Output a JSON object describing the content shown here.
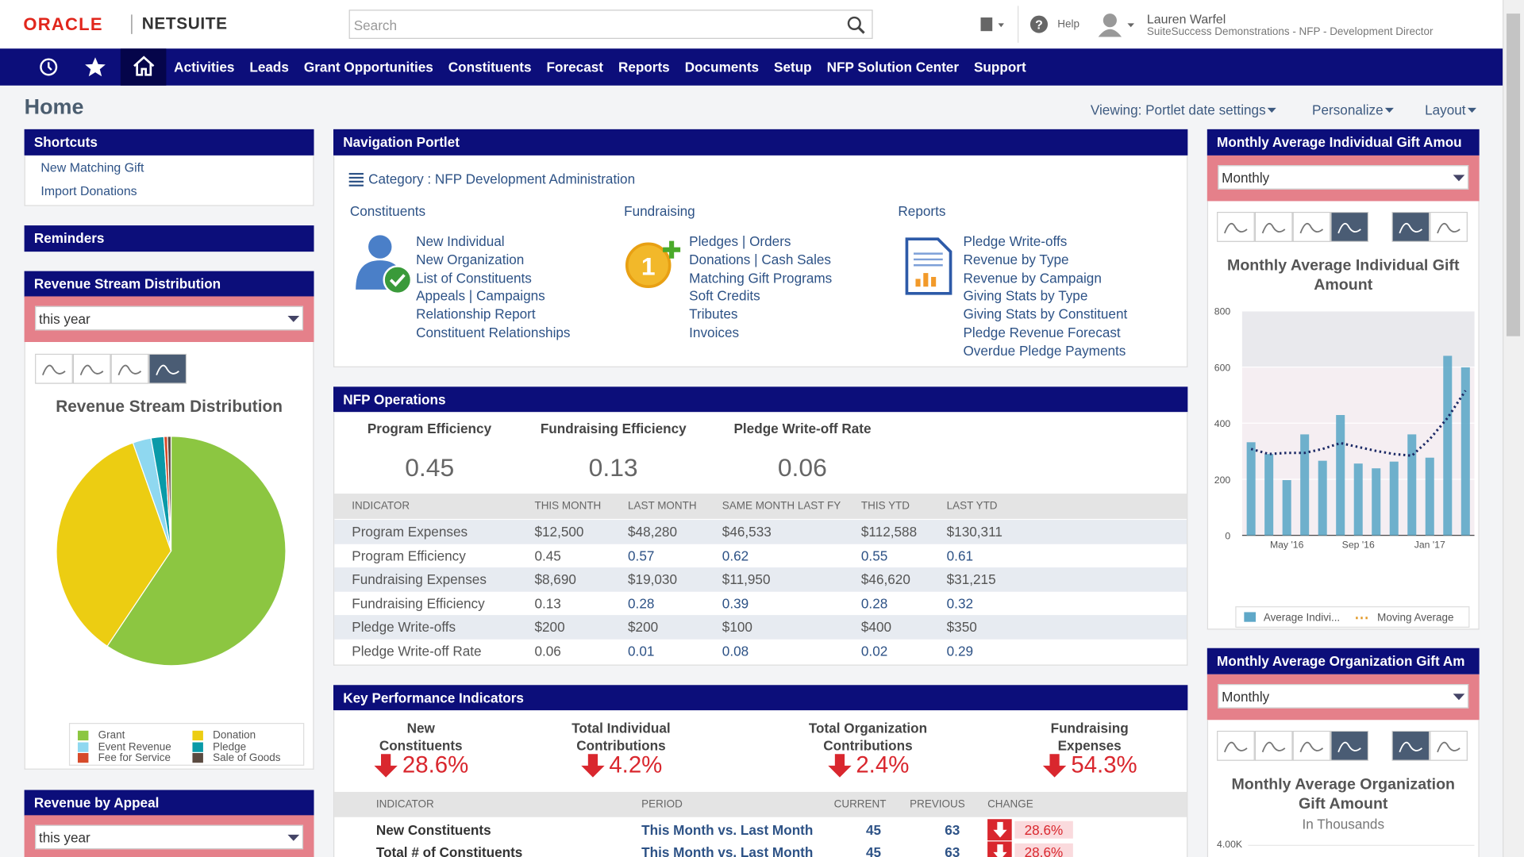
{
  "header": {
    "oracle": "ORACLE",
    "netsuite": "NETSUITE",
    "search": "Search",
    "help": "Help",
    "user_name": "Lauren Warfel",
    "user_role": "SuiteSuccess Demonstrations - NFP - Development Director"
  },
  "nav": [
    "Activities",
    "Leads",
    "Grant Opportunities",
    "Constituents",
    "Forecast",
    "Reports",
    "Documents",
    "Setup",
    "NFP Solution Center",
    "Support"
  ],
  "page_title": "Home",
  "toolbar": [
    "Viewing: Portlet date settings",
    "Personalize",
    "Layout"
  ],
  "shortcuts": {
    "title": "Shortcuts",
    "links": [
      "New Matching Gift",
      "Import Donations"
    ]
  },
  "reminders": {
    "title": "Reminders"
  },
  "revenue_stream": {
    "title": "Revenue Stream Distribution",
    "filter": "this year",
    "chart_data": {
      "type": "pie",
      "title": "Revenue Stream Distribution",
      "categories": [
        "Grant",
        "Donation",
        "Event Revenue",
        "Pledge",
        "Fee for Service",
        "Sale of Goods"
      ],
      "values": [
        59.4,
        35.2,
        2.6,
        1.8,
        0.5,
        0.5
      ],
      "colors": [
        "#8cc641",
        "#eccd12",
        "#8fd8f0",
        "#0a9aa8",
        "#d64a2a",
        "#5a4a40"
      ]
    }
  },
  "revenue_by_appeal": {
    "title": "Revenue by Appeal",
    "filter": "this year"
  },
  "navigation": {
    "title": "Navigation Portlet",
    "category": "Category : NFP Development Administration",
    "sections": [
      {
        "title": "Constituents",
        "links": [
          "New Individual",
          "New Organization",
          "List of Constituents",
          "Appeals | Campaigns",
          "Relationship Report",
          "Constituent Relationships"
        ]
      },
      {
        "title": "Fundraising",
        "links": [
          "Pledges | Orders",
          "Donations | Cash Sales",
          "Matching Gift Programs",
          "Soft Credits",
          "Tributes",
          "Invoices"
        ]
      },
      {
        "title": "Reports",
        "links": [
          "Pledge Write-offs",
          "Revenue by Type",
          "Revenue by Campaign",
          "Giving Stats by Type",
          "Giving Stats by Constituent",
          "Pledge Revenue Forecast",
          "Overdue Pledge Payments"
        ]
      }
    ]
  },
  "nfp_operations": {
    "title": "NFP Operations",
    "metrics": [
      {
        "label": "Program Efficiency",
        "value": "0.45"
      },
      {
        "label": "Fundraising Efficiency",
        "value": "0.13"
      },
      {
        "label": "Pledge Write-off Rate",
        "value": "0.06"
      }
    ],
    "table": {
      "columns": [
        "INDICATOR",
        "THIS MONTH",
        "LAST MONTH",
        "SAME MONTH LAST FY",
        "THIS YTD",
        "LAST YTD"
      ],
      "rows": [
        [
          "Program Expenses",
          "$12,500",
          "$48,280",
          "$46,533",
          "$112,588",
          "$130,311"
        ],
        [
          "Program Efficiency",
          "0.45",
          "0.57",
          "0.62",
          "0.55",
          "0.61"
        ],
        [
          "Fundraising Expenses",
          "$8,690",
          "$19,030",
          "$11,950",
          "$46,620",
          "$31,215"
        ],
        [
          "Fundraising Efficiency",
          "0.13",
          "0.28",
          "0.39",
          "0.28",
          "0.32"
        ],
        [
          "Pledge Write-offs",
          "$200",
          "$200",
          "$100",
          "$400",
          "$350"
        ],
        [
          "Pledge Write-off Rate",
          "0.06",
          "0.01",
          "0.08",
          "0.02",
          "0.29"
        ]
      ]
    }
  },
  "kpi": {
    "title": "Key Performance Indicators",
    "indicators": [
      {
        "label_lines": [
          "New",
          "Constituents"
        ],
        "value": "28.6%"
      },
      {
        "label_lines": [
          "Total Individual",
          "Contributions"
        ],
        "value": "4.2%"
      },
      {
        "label_lines": [
          "Total Organization",
          "Contributions"
        ],
        "value": "2.4%"
      },
      {
        "label_lines": [
          "Fundraising",
          "Expenses"
        ],
        "value": "54.3%"
      }
    ],
    "table": {
      "columns": [
        "INDICATOR",
        "PERIOD",
        "CURRENT",
        "PREVIOUS",
        "CHANGE"
      ],
      "rows": [
        [
          "New Constituents",
          "This Month vs. Last Month",
          "45",
          "63",
          "28.6%"
        ],
        [
          "Total # of Constituents",
          "This Month vs. Last Month",
          "45",
          "63",
          "28.6%"
        ]
      ]
    }
  },
  "indiv_gift": {
    "title": "Monthly Average Individual Gift Amou",
    "filter": "Monthly",
    "chart_data": {
      "type": "bar",
      "title": "Monthly Average Individual Gift Amount",
      "categories": [
        null,
        null,
        "May '16",
        null,
        null,
        null,
        "Sep '16",
        null,
        null,
        null,
        "Jan '17",
        null,
        null
      ],
      "ylim": [
        0,
        800
      ],
      "yticks": [
        0,
        200,
        400,
        600,
        800
      ],
      "series": [
        {
          "name": "Average Indivi...",
          "type": "bar",
          "color": "#5fa8c8",
          "values": [
            332,
            290,
            197,
            360,
            266,
            429,
            256,
            239,
            263,
            360,
            277,
            640,
            599
          ]
        },
        {
          "name": "Moving Average",
          "type": "line",
          "color": "#1c2a66",
          "values": [
            308,
            290,
            294,
            294,
            308,
            329,
            315,
            301,
            290,
            284,
            343,
            419,
            516
          ]
        }
      ]
    }
  },
  "org_gift": {
    "title": "Monthly Average Organization Gift Am",
    "filter": "Monthly",
    "chart_data": {
      "type": "bar",
      "title": "Monthly Average Organization Gift Amount",
      "subtitle": "In Thousands",
      "yticks": [
        {
          "value": 4000,
          "label": "4.00K"
        }
      ]
    }
  }
}
